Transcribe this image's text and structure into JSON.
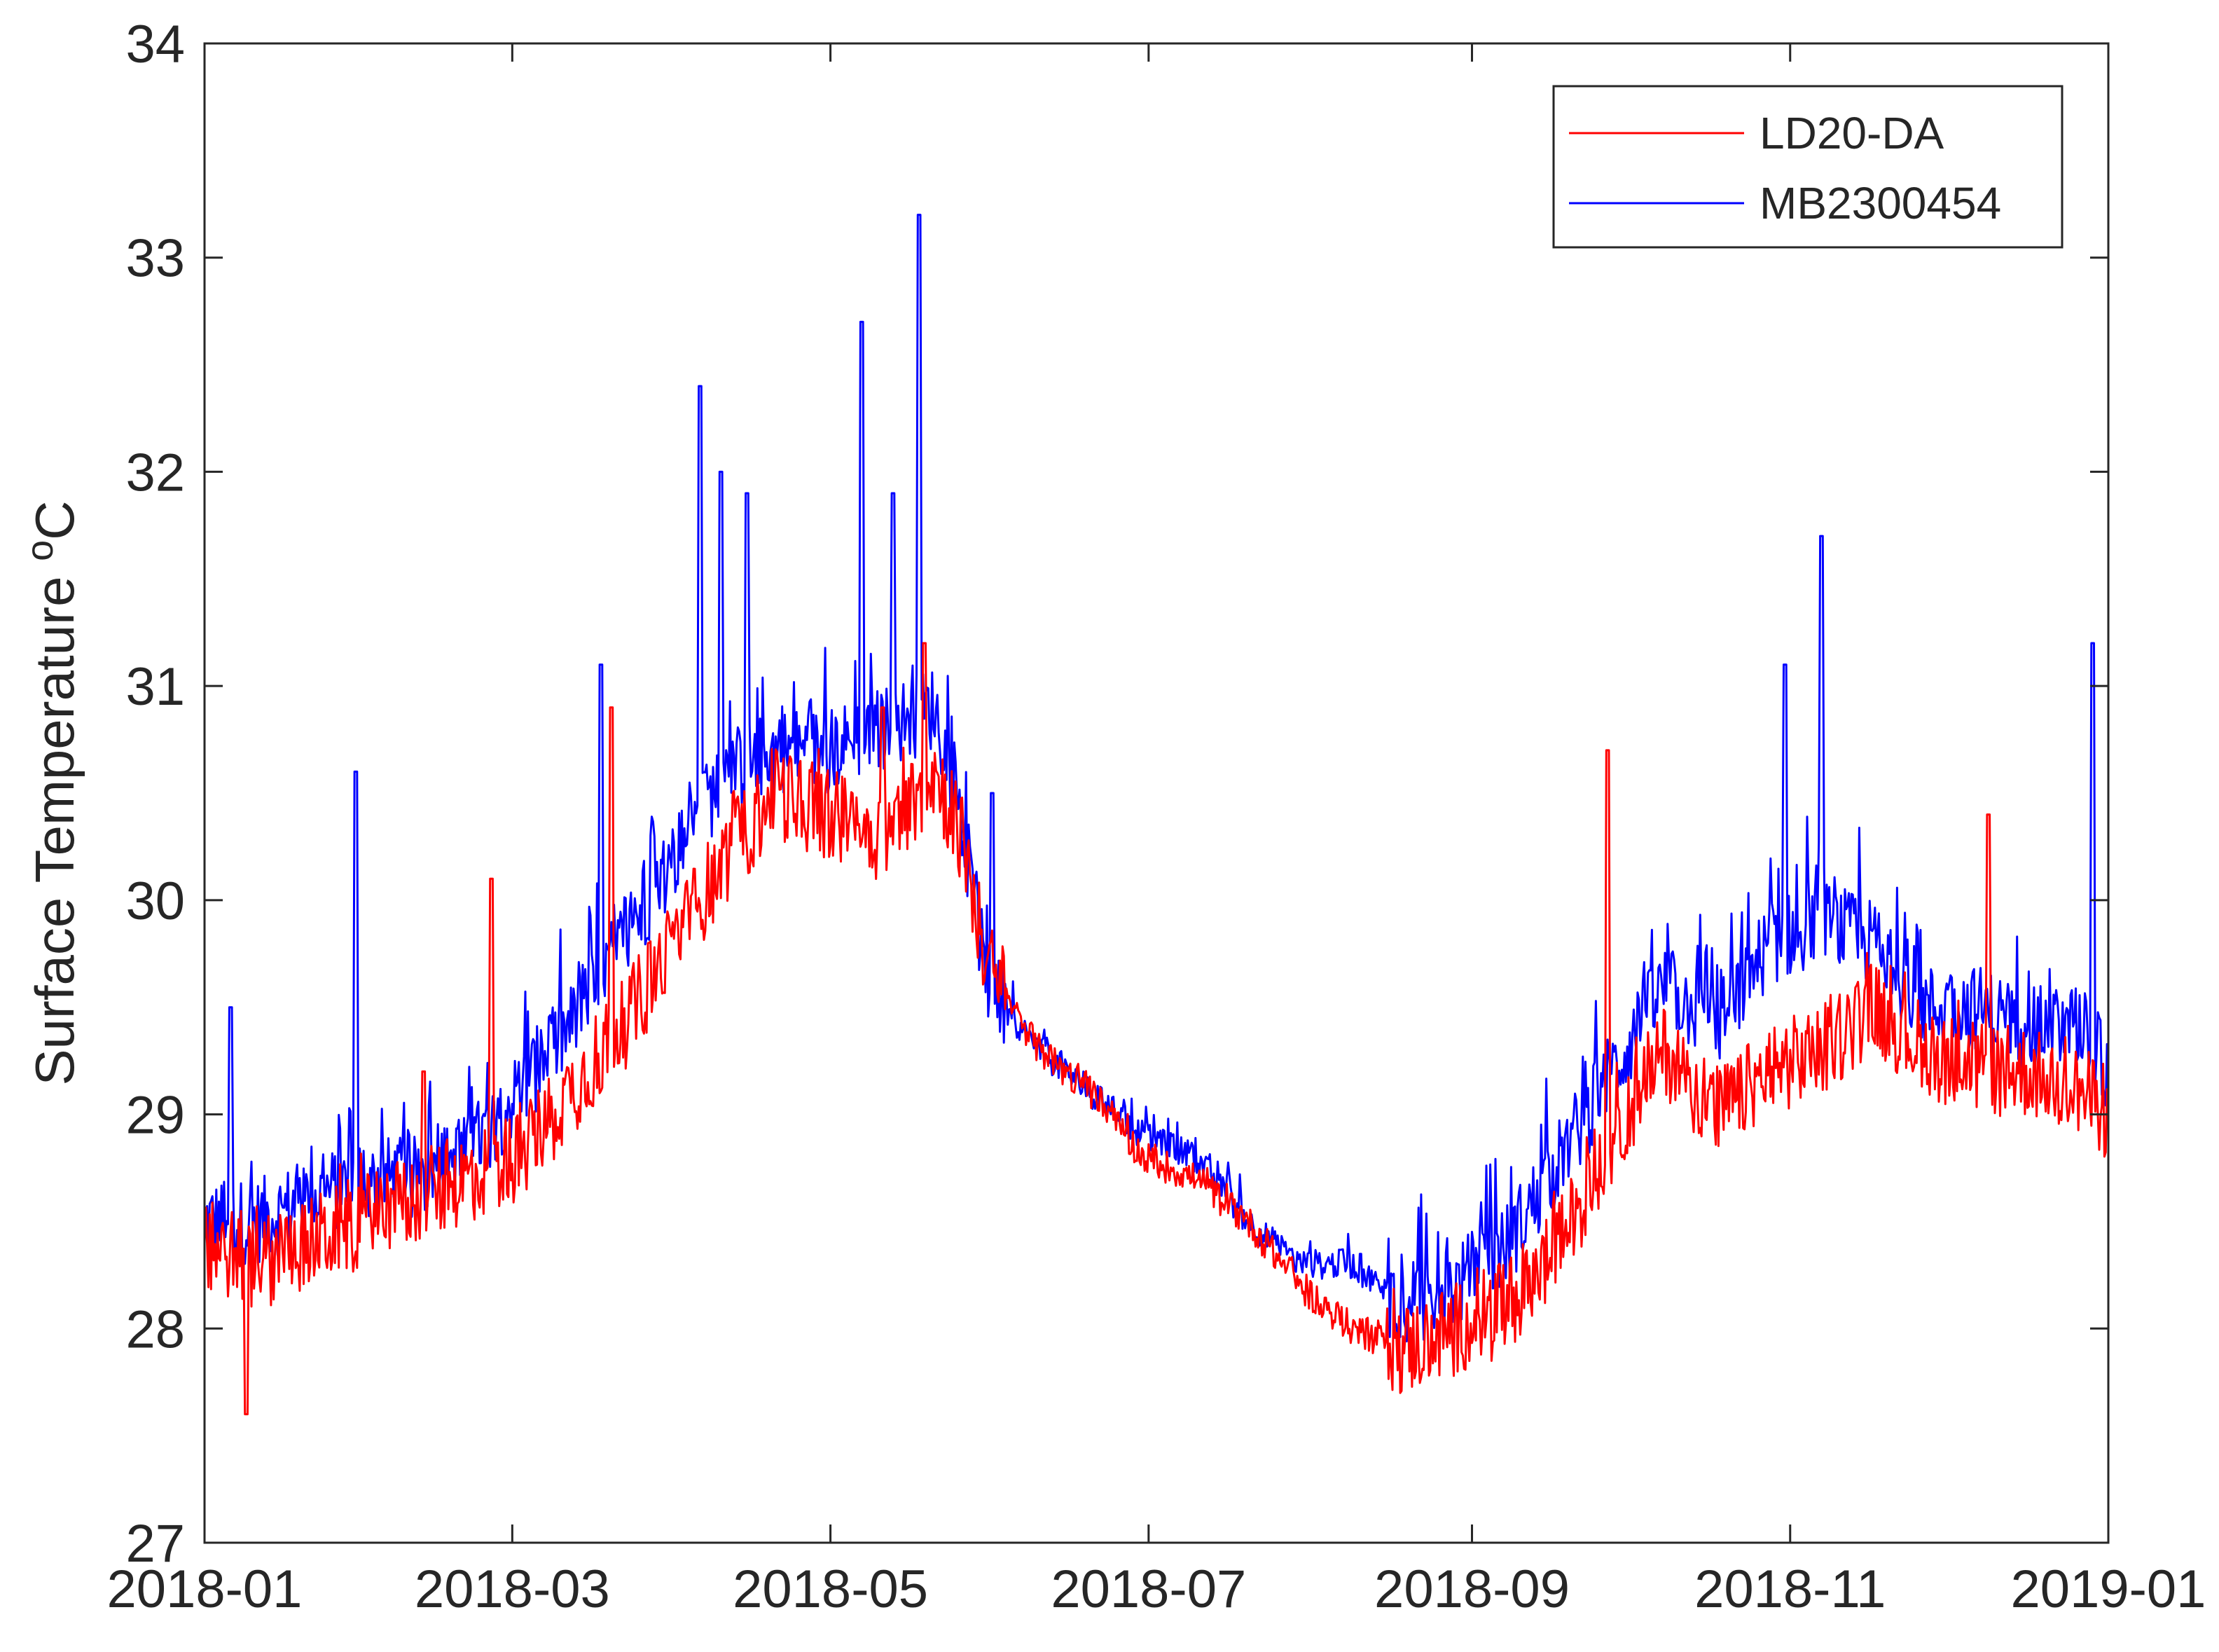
{
  "chart_data": {
    "type": "line",
    "title": "",
    "xlabel": "",
    "ylabel": {
      "main": "Surface Temperature ",
      "superscript": "o",
      "unit": "C"
    },
    "ylim": [
      27,
      34
    ],
    "xlim": [
      "2018-01-01",
      "2019-01-01"
    ],
    "yticks": [
      27,
      28,
      29,
      30,
      31,
      32,
      33,
      34
    ],
    "xticks": [
      "2018-01",
      "2018-03",
      "2018-05",
      "2018-07",
      "2018-09",
      "2018-11",
      "2019-01"
    ],
    "legend_position": "top-right",
    "grid": false,
    "series": [
      {
        "name": "LD20-DA",
        "color": "#ff0000",
        "x": [
          "2018-01-01",
          "2018-01-11",
          "2018-01-21",
          "2018-01-31",
          "2018-02-10",
          "2018-02-20",
          "2018-03-02",
          "2018-03-12",
          "2018-03-22",
          "2018-04-01",
          "2018-04-11",
          "2018-04-21",
          "2018-05-01",
          "2018-05-11",
          "2018-05-21",
          "2018-05-26",
          "2018-05-31",
          "2018-06-10",
          "2018-06-20",
          "2018-06-30",
          "2018-07-10",
          "2018-07-20",
          "2018-07-30",
          "2018-08-09",
          "2018-08-19",
          "2018-08-29",
          "2018-09-08",
          "2018-09-18",
          "2018-09-28",
          "2018-10-08",
          "2018-10-18",
          "2018-10-28",
          "2018-11-07",
          "2018-11-17",
          "2018-11-27",
          "2018-12-07",
          "2018-12-17",
          "2018-12-27",
          "2019-01-01"
        ],
        "y": [
          28.4,
          28.3,
          28.4,
          28.5,
          28.6,
          28.7,
          28.8,
          29.1,
          29.4,
          29.8,
          30.2,
          30.5,
          30.4,
          30.3,
          30.6,
          30.3,
          29.7,
          29.3,
          29.1,
          28.8,
          28.7,
          28.5,
          28.2,
          28.0,
          27.9,
          28.0,
          28.1,
          28.4,
          28.9,
          29.3,
          29.0,
          29.2,
          29.3,
          29.5,
          29.3,
          29.2,
          29.2,
          29.1,
          29.0
        ]
      },
      {
        "name": "MB2300454",
        "color": "#0000ff",
        "x": [
          "2018-01-01",
          "2018-01-11",
          "2018-01-21",
          "2018-01-31",
          "2018-02-10",
          "2018-02-20",
          "2018-03-02",
          "2018-03-12",
          "2018-03-22",
          "2018-04-01",
          "2018-04-11",
          "2018-04-21",
          "2018-05-01",
          "2018-05-11",
          "2018-05-21",
          "2018-05-26",
          "2018-05-31",
          "2018-06-10",
          "2018-06-20",
          "2018-06-30",
          "2018-07-10",
          "2018-07-20",
          "2018-07-30",
          "2018-08-09",
          "2018-08-19",
          "2018-08-29",
          "2018-09-08",
          "2018-09-18",
          "2018-09-28",
          "2018-10-08",
          "2018-10-18",
          "2018-10-28",
          "2018-11-07",
          "2018-11-17",
          "2018-11-27",
          "2018-12-07",
          "2018-12-17",
          "2018-12-27",
          "2019-01-01"
        ],
        "y": [
          28.5,
          28.5,
          28.6,
          28.7,
          28.7,
          28.8,
          29.1,
          29.4,
          29.8,
          30.2,
          30.6,
          30.7,
          30.7,
          30.8,
          30.9,
          30.4,
          29.6,
          29.3,
          29.1,
          28.9,
          28.8,
          28.5,
          28.3,
          28.3,
          28.1,
          28.2,
          28.4,
          28.8,
          29.2,
          29.6,
          29.4,
          29.8,
          29.9,
          29.8,
          29.5,
          29.5,
          29.4,
          29.4,
          29.2
        ]
      }
    ],
    "spikes": {
      "LD20-DA": [
        {
          "x": "2018-01-09",
          "y": 27.6
        },
        {
          "x": "2018-02-12",
          "y": 29.2
        },
        {
          "x": "2018-02-25",
          "y": 30.1
        },
        {
          "x": "2018-03-20",
          "y": 30.9
        },
        {
          "x": "2018-05-11",
          "y": 30.9
        },
        {
          "x": "2018-05-19",
          "y": 31.2
        },
        {
          "x": "2018-09-27",
          "y": 30.7
        },
        {
          "x": "2018-12-09",
          "y": 30.4
        }
      ],
      "MB2300454": [
        {
          "x": "2018-01-06",
          "y": 29.5
        },
        {
          "x": "2018-01-30",
          "y": 30.6
        },
        {
          "x": "2018-03-18",
          "y": 31.1
        },
        {
          "x": "2018-04-06",
          "y": 32.4
        },
        {
          "x": "2018-04-10",
          "y": 32.0
        },
        {
          "x": "2018-04-15",
          "y": 31.9
        },
        {
          "x": "2018-05-07",
          "y": 32.7
        },
        {
          "x": "2018-05-13",
          "y": 31.9
        },
        {
          "x": "2018-05-18",
          "y": 33.2
        },
        {
          "x": "2018-06-01",
          "y": 30.5
        },
        {
          "x": "2018-10-31",
          "y": 31.1
        },
        {
          "x": "2018-11-07",
          "y": 31.7
        },
        {
          "x": "2018-12-29",
          "y": 31.2
        }
      ]
    }
  }
}
